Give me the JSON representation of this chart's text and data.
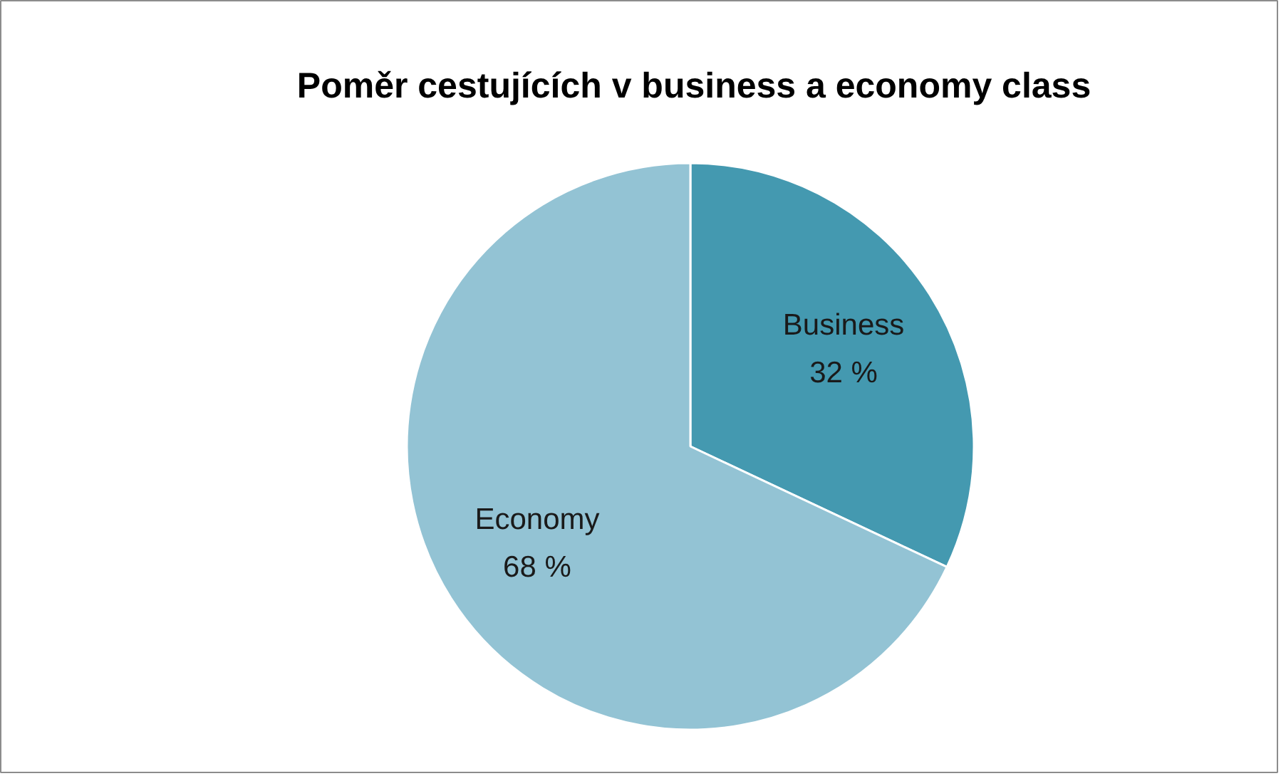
{
  "chart_data": {
    "type": "pie",
    "title": "Poměr cestujících v business a economy class",
    "categories": [
      "Business",
      "Economy"
    ],
    "values": [
      32,
      68
    ],
    "colors": [
      "#4499b0",
      "#93c3d4"
    ],
    "value_labels": [
      "32 %",
      "68 %"
    ]
  }
}
